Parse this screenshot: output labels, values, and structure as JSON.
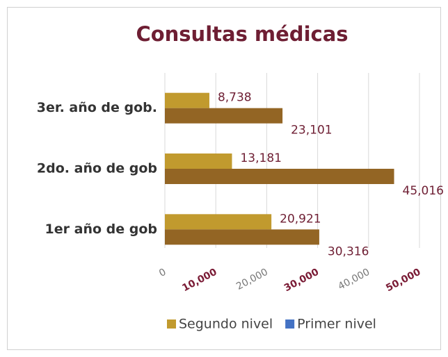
{
  "chart_data": {
    "type": "hbar",
    "title": "Consultas médicas",
    "categories": [
      "1er año de gob",
      "2do. año de gob",
      "3er. año de gob."
    ],
    "series": [
      {
        "name": "Segundo nivel",
        "color": "#c19a2e",
        "values": [
          20921,
          13181,
          8738
        ],
        "value_labels": [
          "20,921",
          "13,181",
          "8,738"
        ]
      },
      {
        "name": "Primer nivel",
        "color": "#936524",
        "legend_color": "#4472c4",
        "values": [
          30316,
          45016,
          23101
        ],
        "value_labels": [
          "30,316",
          "45,016",
          "23,101"
        ]
      }
    ],
    "xlim": [
      0,
      50000
    ],
    "xticks": [
      0,
      {
        "value": 10000,
        "label": "10,000"
      },
      {
        "value": 20000,
        "label": "20,000"
      },
      {
        "value": 30000,
        "label": "30,000"
      },
      {
        "value": 40000,
        "label": "40,000"
      },
      {
        "value": 50000,
        "label": "50,000"
      }
    ],
    "grid": true,
    "legend": "bottom"
  }
}
